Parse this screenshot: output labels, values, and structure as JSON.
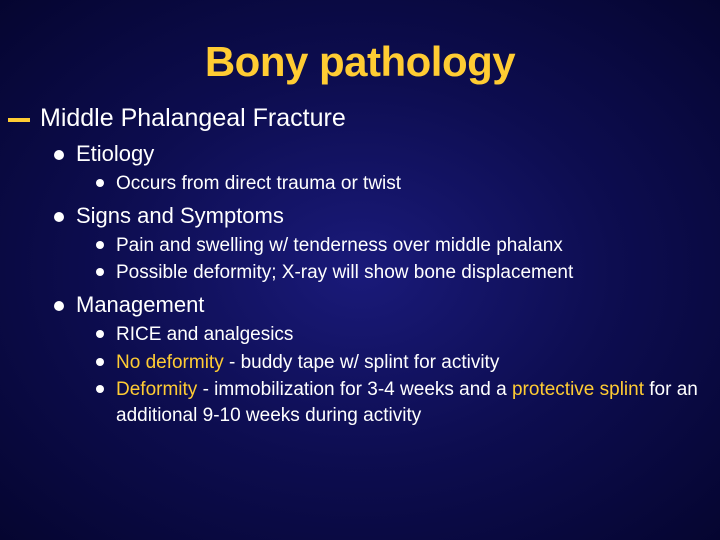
{
  "colors": {
    "accent": "#ffcc33",
    "text": "#ffffff",
    "background_inner": "#1a1a7a",
    "background_outer": "#050530"
  },
  "typography": {
    "title_fontsize": 42,
    "l0_fontsize": 25,
    "l1_fontsize": 22,
    "l2_fontsize": 19,
    "font_family": "Arial"
  },
  "title": "Bony pathology",
  "l0": {
    "heading": "Middle Phalangeal Fracture"
  },
  "sections": {
    "etiology": {
      "label": "Etiology",
      "items": [
        "Occurs from direct trauma or twist"
      ]
    },
    "signs": {
      "label": "Signs and Symptoms",
      "items": [
        "Pain and swelling w/ tenderness over middle phalanx",
        "Possible deformity; X-ray will show bone displacement"
      ]
    },
    "mgmt": {
      "label": "Management",
      "item0": "RICE and analgesics",
      "item1_hl": "No deformity",
      "item1_rest": " - buddy tape w/ splint for activity",
      "item2_hl": "Deformity",
      "item2_mid": " - immobilization for 3-4 weeks and a ",
      "item2_hl2": "protective splint",
      "item2_rest": " for an additional 9-10 weeks during activity"
    }
  }
}
